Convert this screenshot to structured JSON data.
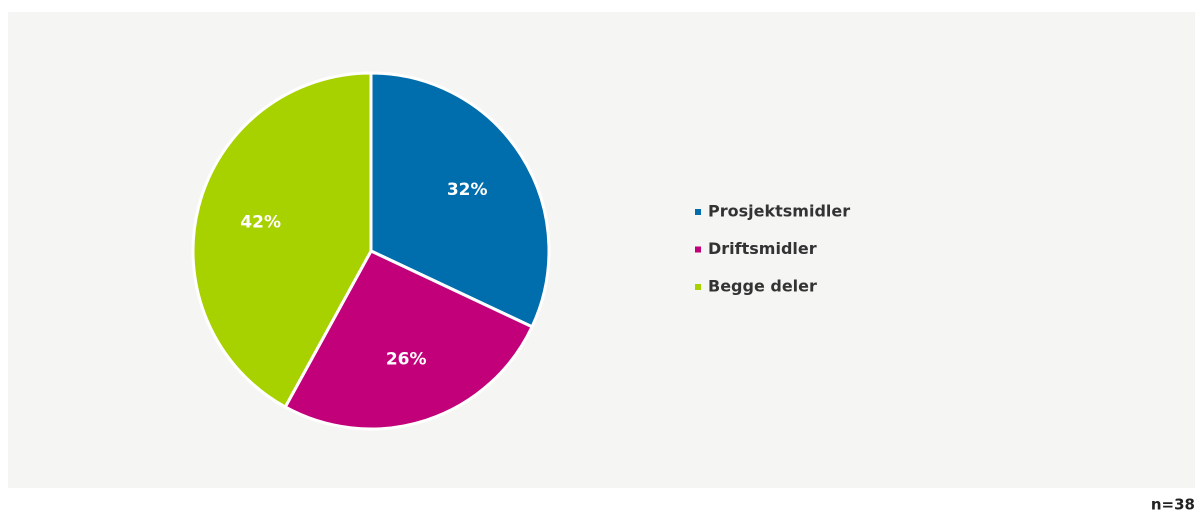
{
  "chart_data": {
    "type": "pie",
    "categories": [
      "Prosjektsmidler",
      "Driftsmidler",
      "Begge deler"
    ],
    "values": [
      32,
      26,
      42
    ],
    "value_labels": [
      "32%",
      "26%",
      "42%"
    ],
    "colors": [
      "#006ead",
      "#c2007a",
      "#a8d100"
    ],
    "annotation": "n=38"
  }
}
